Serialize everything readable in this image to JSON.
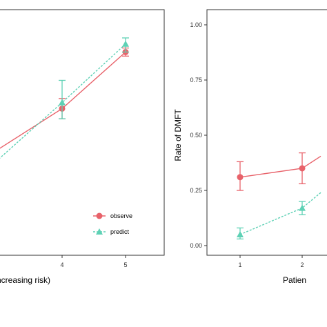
{
  "chart_data": [
    {
      "type": "line",
      "xlabel": "ncreasing risk)",
      "ylabel": "",
      "x_ticks": [
        "4",
        "5"
      ],
      "legend": {
        "position": "bottom-right"
      },
      "series": [
        {
          "name": "observe",
          "color": "#e8626a",
          "marker": "circle",
          "line": "solid",
          "points": [
            {
              "x": 3,
              "y": 0.43
            },
            {
              "x": 4,
              "y": 0.63,
              "lo": 0.58,
              "hi": 0.68
            },
            {
              "x": 5,
              "y": 0.91,
              "lo": 0.89,
              "hi": 0.93
            }
          ]
        },
        {
          "name": "predict",
          "color": "#5ed1b5",
          "marker": "triangle",
          "line": "dashed",
          "points": [
            {
              "x": 3,
              "y": 0.38
            },
            {
              "x": 4,
              "y": 0.66,
              "lo": 0.58,
              "hi": 0.77
            },
            {
              "x": 5,
              "y": 0.95,
              "lo": 0.91,
              "hi": 0.98
            }
          ]
        }
      ]
    },
    {
      "type": "line",
      "xlabel": "Patien",
      "ylabel": "Rate of DMFT",
      "ylim": [
        0,
        1
      ],
      "y_ticks": [
        "0.00",
        "0.25",
        "0.50",
        "0.75",
        "1.00"
      ],
      "x_ticks": [
        "1",
        "2"
      ],
      "series": [
        {
          "name": "observe",
          "color": "#e8626a",
          "marker": "circle",
          "line": "solid",
          "points": [
            {
              "x": 1,
              "y": 0.31,
              "lo": 0.25,
              "hi": 0.38
            },
            {
              "x": 2,
              "y": 0.35,
              "lo": 0.28,
              "hi": 0.42
            },
            {
              "x": 2.3,
              "y": 0.405
            }
          ]
        },
        {
          "name": "predict",
          "color": "#5ed1b5",
          "marker": "triangle",
          "line": "dashed",
          "points": [
            {
              "x": 1,
              "y": 0.05,
              "lo": 0.03,
              "hi": 0.08
            },
            {
              "x": 2,
              "y": 0.17,
              "lo": 0.14,
              "hi": 0.2
            },
            {
              "x": 2.3,
              "y": 0.24
            }
          ]
        }
      ]
    }
  ]
}
